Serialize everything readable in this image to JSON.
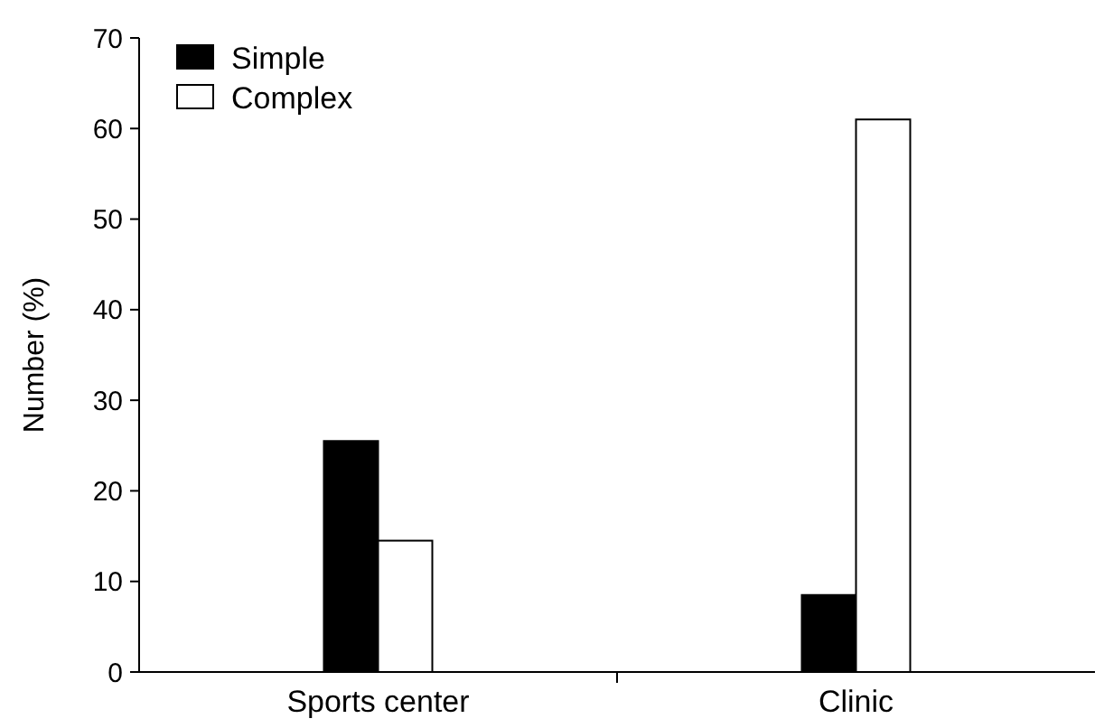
{
  "chart_data": {
    "type": "bar",
    "ylabel": "Number (%)",
    "categories": [
      "Sports center",
      "Clinic"
    ],
    "series": [
      {
        "name": "Simple",
        "color": "#000000",
        "values": [
          25.5,
          8.5
        ]
      },
      {
        "name": "Complex",
        "color": "#ffffff",
        "values": [
          14.5,
          61
        ]
      }
    ],
    "ylim": [
      0,
      70
    ],
    "yticks": [
      0,
      10,
      20,
      30,
      40,
      50,
      60,
      70
    ],
    "legend": "top left",
    "grid": false
  }
}
